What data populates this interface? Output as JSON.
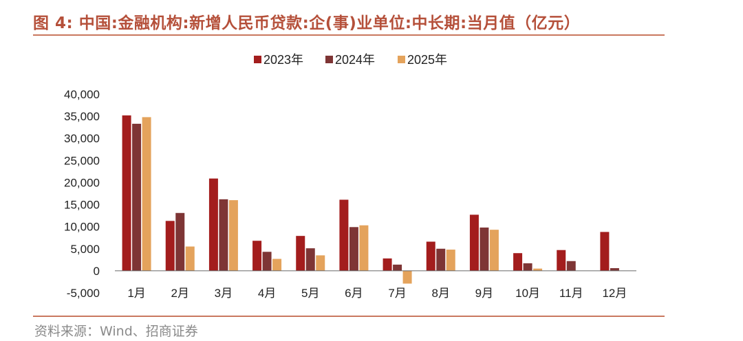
{
  "title": "图 4:  中国:金融机构:新增人民币贷款:企(事)业单位:中长期:当月值（亿元）",
  "source": "资料来源：Wind、招商证券",
  "chart_data": {
    "type": "bar",
    "categories": [
      "1月",
      "2月",
      "3月",
      "4月",
      "5月",
      "6月",
      "7月",
      "8月",
      "9月",
      "10月",
      "11月",
      "12月"
    ],
    "series": [
      {
        "name": "2023年",
        "color": "#a31d1d",
        "values": [
          35200,
          11300,
          20900,
          6800,
          7900,
          16100,
          2800,
          6600,
          12700,
          4000,
          4700,
          8800
        ]
      },
      {
        "name": "2024年",
        "color": "#7e3535",
        "values": [
          33300,
          13100,
          16200,
          4300,
          5100,
          9900,
          1400,
          5000,
          9800,
          1700,
          2200,
          600
        ]
      },
      {
        "name": "2025年",
        "color": "#e4a35c",
        "values": [
          34800,
          5500,
          16000,
          2700,
          3500,
          10300,
          -2900,
          4800,
          9300,
          500,
          null,
          null
        ]
      }
    ],
    "y_ticks": [
      "40,000",
      "35,000",
      "30,000",
      "25,000",
      "20,000",
      "15,000",
      "10,000",
      "5,000",
      "0",
      "-5,000"
    ],
    "ylim": [
      -5000,
      40000
    ],
    "legend": "top-center",
    "grid": false
  }
}
